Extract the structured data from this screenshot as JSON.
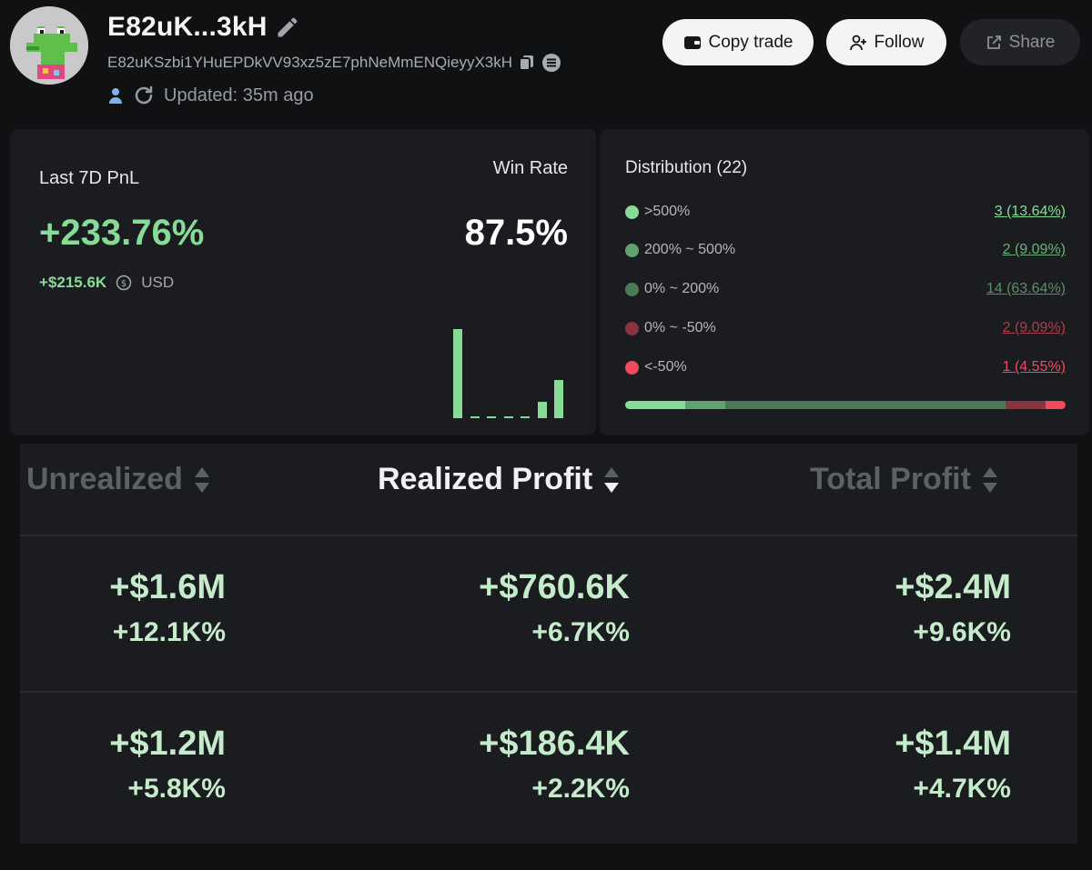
{
  "profile": {
    "name": "E82uK...3kH",
    "address": "E82uKSzbi1YHuEPDkVV93xz5zE7phNeMmENQieyyX3kH",
    "updated": "Updated: 35m ago"
  },
  "actions": {
    "copy_trade": "Copy trade",
    "follow": "Follow",
    "share": "Share"
  },
  "pnl": {
    "label": "Last 7D PnL",
    "value": "+233.76%",
    "usd_amount": "+$215.6K",
    "currency": "USD",
    "win_rate_label": "Win Rate",
    "win_rate_value": "87.5%",
    "bar_values": [
      1.0,
      0.02,
      0.02,
      0.02,
      0.02,
      0.18,
      0.43
    ]
  },
  "distribution": {
    "title": "Distribution (22)",
    "rows": [
      {
        "label": ">500%",
        "value": "3 (13.64%)",
        "count": 3,
        "color": "#86dc97"
      },
      {
        "label": "200% ~ 500%",
        "value": "2 (9.09%)",
        "count": 2,
        "color": "#5fa36f"
      },
      {
        "label": "0% ~ 200%",
        "value": "14 (63.64%)",
        "count": 14,
        "color": "#4c7a55"
      },
      {
        "label": "0% ~ -50%",
        "value": "2 (9.09%)",
        "count": 2,
        "color": "#8a3440"
      },
      {
        "label": "<-50%",
        "value": "1 (4.55%)",
        "count": 1,
        "color": "#f2495f"
      }
    ]
  },
  "table": {
    "headers": {
      "unrealized": "Unrealized",
      "realized": "Realized Profit",
      "total": "Total Profit"
    },
    "rows": [
      {
        "unrealized": "+$1.6M",
        "unrealized_pct": "+12.1K%",
        "realized": "+$760.6K",
        "realized_pct": "+6.7K%",
        "total": "+$2.4M",
        "total_pct": "+9.6K%"
      },
      {
        "unrealized": "+$1.2M",
        "unrealized_pct": "+5.8K%",
        "realized": "+$186.4K",
        "realized_pct": "+2.2K%",
        "total": "+$1.4M",
        "total_pct": "+4.7K%"
      }
    ]
  }
}
